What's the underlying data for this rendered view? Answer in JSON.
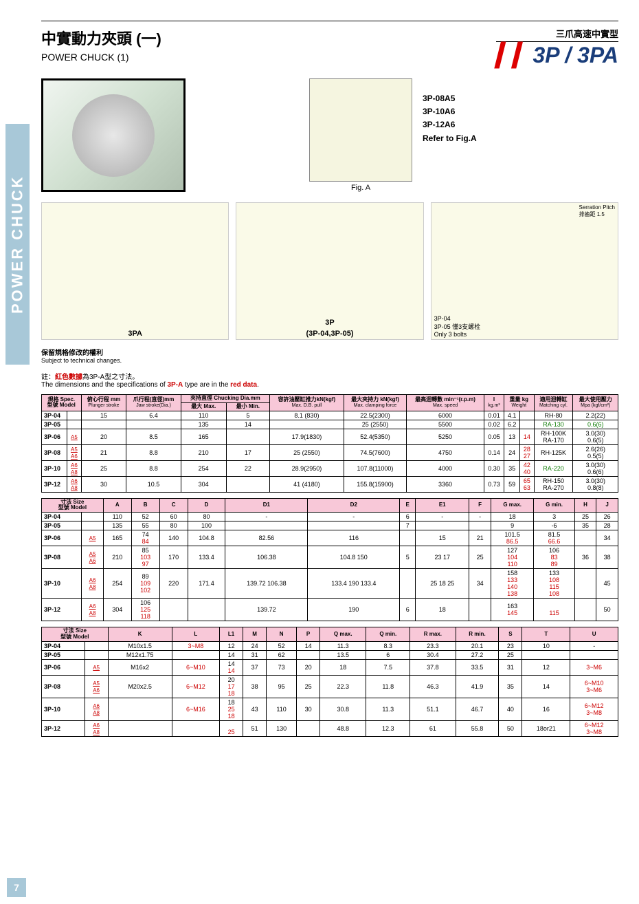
{
  "sidebar_label": "POWER CHUCK",
  "page_number": "7",
  "header": {
    "title_cn": "中實動力夾頭 (一)",
    "title_en": "POWER CHUCK (1)",
    "subtitle_cn": "三爪高速中實型",
    "model": "3P / 3PA"
  },
  "fig_a": {
    "models": [
      "3P-08A5",
      "3P-10A6",
      "3P-12A6"
    ],
    "refer": "Refer to Fig.A",
    "caption": "Fig. A"
  },
  "diagrams": {
    "serration": "Serration Pitch",
    "serration_cn": "排齒距 1.5",
    "label_3pa": "3PA",
    "label_3p": "3P",
    "label_3p_sub": "(3P-04,3P-05)",
    "label_3p04": "3P-04",
    "label_3p05": "3P-05 僅3支螺栓",
    "label_bolts": "Only 3 bolts"
  },
  "notes": {
    "cn": "保留規格修改的權利",
    "en": "Subject to technical changes."
  },
  "red_note": {
    "cn_prefix": "註：",
    "cn_red": "紅色數據",
    "cn_suffix": "為3P-A型之寸法。",
    "en_prefix": "The dimensions and the specifications of ",
    "en_mid": "3P-A",
    "en_mid2": " type are in the ",
    "en_red": "red data",
    "en_suffix": "."
  },
  "table1": {
    "headers": {
      "spec": "規格 Spec.",
      "model": "型號 Model",
      "plunger": "俯心行程 mm",
      "plunger_en": "Plunger stroke",
      "jaw": "爪行程(直徑)mm",
      "jaw_en": "Jaw stroke(Dia.)",
      "chuck": "夾持直徑 Chucking Dia.mm",
      "chuck_max": "最大 Max.",
      "chuck_min": "最小 Min.",
      "pull": "容許油壓缸推力kN(kgf)",
      "pull_en": "Max. D.B. pull",
      "clamp": "最大夾持力 kN(kgf)",
      "clamp_en": "Max. clamping force",
      "speed": "最高迴轉數 min⁻¹(r.p.m)",
      "speed_en": "Max. speed",
      "inertia": "I",
      "inertia_en": "kg.m²",
      "weight": "重量 kg",
      "weight_en": "Weight",
      "cyl": "適用迴轉缸",
      "cyl_en": "Matching cyl.",
      "press": "最大使用壓力",
      "press_en": "Mpa (kgf/cm²)"
    },
    "rows": [
      {
        "model": "3P-04",
        "sub": "",
        "ps": "15",
        "js": "6.4",
        "cmax": "110",
        "cmin": "5",
        "pull": "8.1 (830)",
        "clamp": "22.5(2300)",
        "speed": "6000",
        "i": "0.01",
        "w": "4.1",
        "w2": "",
        "cyl": "RH-80",
        "press": "2.2(22)"
      },
      {
        "model": "3P-05",
        "sub": "",
        "ps": "",
        "js": "",
        "cmax": "135",
        "cmin": "14",
        "pull": "",
        "clamp": "25 (2550)",
        "speed": "5500",
        "i": "0.02",
        "w": "6.2",
        "w2": "",
        "cyl": "RA-130",
        "cyl_green": true,
        "press": "0.6(6)",
        "press_green": true
      },
      {
        "model": "3P-06",
        "sub": "A5",
        "ps": "20",
        "js": "8.5",
        "cmax": "165",
        "cmin": "",
        "pull": "17.9(1830)",
        "clamp": "52.4(5350)",
        "speed": "5250",
        "i": "0.05",
        "w": "13",
        "w2": "14",
        "cyl": "RH-100K RA-170",
        "press": "3.0(30) 0.6(5)"
      },
      {
        "model": "3P-08",
        "sub": "A5 A6",
        "ps": "21",
        "js": "8.8",
        "cmax": "210",
        "cmin": "17",
        "pull": "25 (2550)",
        "clamp": "74.5(7600)",
        "speed": "4750",
        "i": "0.14",
        "w": "24",
        "w2": "28 27",
        "cyl": "RH-125K",
        "press": "2.6(26) 0.5(5)"
      },
      {
        "model": "3P-10",
        "sub": "A6 A8",
        "ps": "25",
        "js": "8.8",
        "cmax": "254",
        "cmin": "22",
        "pull": "28.9(2950)",
        "clamp": "107.8(11000)",
        "speed": "4000",
        "i": "0.30",
        "w": "35",
        "w2": "42 40",
        "cyl": "RA-220",
        "cyl_green": true,
        "press": "3.0(30) 0.6(6)"
      },
      {
        "model": "3P-12",
        "sub": "A6 A8",
        "ps": "30",
        "js": "10.5",
        "cmax": "304",
        "cmin": "",
        "pull": "41 (4180)",
        "clamp": "155.8(15900)",
        "speed": "3360",
        "i": "0.73",
        "w": "59",
        "w2": "65 63",
        "cyl": "RH-150 RA-270",
        "press": "3.0(30) 0.8(8)"
      }
    ]
  },
  "table2": {
    "headers": {
      "size": "寸法 Size",
      "model": "型號 Model",
      "cols": [
        "A",
        "B",
        "C",
        "D",
        "D1",
        "D2",
        "E",
        "E1",
        "F",
        "G max.",
        "G min.",
        "H",
        "J"
      ]
    },
    "rows": [
      {
        "model": "3P-04",
        "sub": "",
        "v": [
          "110",
          "52",
          "60",
          "80",
          "-",
          "-",
          "6",
          "-",
          "-",
          "18",
          "3",
          "25",
          "26"
        ]
      },
      {
        "model": "3P-05",
        "sub": "",
        "v": [
          "135",
          "55",
          "80",
          "100",
          "",
          "",
          "7",
          "",
          "",
          "9",
          "-6",
          "35",
          "28"
        ]
      },
      {
        "model": "3P-06",
        "sub": "A5",
        "v": [
          "165",
          "74 | 84",
          "140",
          "104.8",
          "82.56",
          "116",
          "",
          "15",
          "21",
          "101.5 | 86.5",
          "81.5 | 66.6",
          "",
          "34"
        ]
      },
      {
        "model": "3P-08",
        "sub": "A5 A6",
        "v": [
          "210",
          "85 | 103 97",
          "170",
          "133.4",
          "106.38",
          "104.8 150",
          "5",
          "23 17",
          "25",
          "127 | 104 110",
          "106 | 83 89",
          "36",
          "38"
        ]
      },
      {
        "model": "3P-10",
        "sub": "A6 A8",
        "v": [
          "254",
          "89 | 109 102",
          "220",
          "171.4",
          "139.72 106.38",
          "133.4 190 133.4",
          "",
          "25 18 25",
          "34",
          "158 | 133 140 138",
          "133 | 108 115 108",
          "",
          "45"
        ]
      },
      {
        "model": "3P-12",
        "sub": "A6 A8",
        "v": [
          "304",
          "106 | 125 118",
          "",
          "",
          "139.72",
          "190",
          "6",
          "18",
          "",
          "163 | 145",
          "| 115",
          "",
          "50"
        ]
      }
    ]
  },
  "table3": {
    "headers": {
      "size": "寸法 Size",
      "model": "型號 Model",
      "cols": [
        "K",
        "L",
        "L1",
        "M",
        "N",
        "P",
        "Q max.",
        "Q min.",
        "R max.",
        "R min.",
        "S",
        "T",
        "U"
      ]
    },
    "rows": [
      {
        "model": "3P-04",
        "sub": "",
        "v": [
          "M10x1.5",
          "3~M8",
          "12",
          "24",
          "52",
          "14",
          "11.3",
          "8.3",
          "23.3",
          "20.1",
          "23",
          "10",
          "-"
        ]
      },
      {
        "model": "3P-05",
        "sub": "",
        "v": [
          "M12x1.75",
          "",
          "14",
          "31",
          "62",
          "",
          "13.5",
          "6",
          "30.4",
          "27.2",
          "25",
          "",
          ""
        ]
      },
      {
        "model": "3P-06",
        "sub": "A5",
        "v": [
          "M16x2",
          "6~M10",
          "14 | 14",
          "37",
          "73",
          "20",
          "18",
          "7.5",
          "37.8",
          "33.5",
          "31",
          "12",
          "3~M6"
        ]
      },
      {
        "model": "3P-08",
        "sub": "A5 A6",
        "v": [
          "M20x2.5",
          "6~M12",
          "20 | 17 18",
          "38",
          "95",
          "25",
          "22.3",
          "11.8",
          "46.3",
          "41.9",
          "35",
          "14",
          "6~M10 3~M6"
        ]
      },
      {
        "model": "3P-10",
        "sub": "A6 A8",
        "v": [
          "",
          "6~M16",
          "18 | 25 18",
          "43",
          "110",
          "30",
          "30.8",
          "11.3",
          "51.1",
          "46.7",
          "40",
          "16",
          "6~M12 3~M8"
        ]
      },
      {
        "model": "3P-12",
        "sub": "A6 A8",
        "v": [
          "",
          "",
          "| 25",
          "51",
          "130",
          "",
          "48.8",
          "12.3",
          "61",
          "55.8",
          "50",
          "18or21",
          "6~M12 3~M8"
        ]
      }
    ]
  }
}
